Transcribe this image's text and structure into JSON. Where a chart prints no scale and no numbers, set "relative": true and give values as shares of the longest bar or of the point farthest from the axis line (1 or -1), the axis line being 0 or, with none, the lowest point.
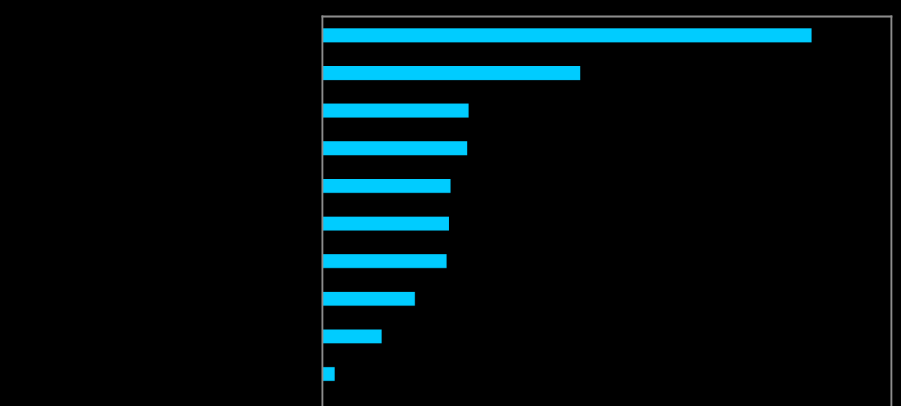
{
  "chart_data": {
    "type": "bar",
    "orientation": "horizontal",
    "relative": true,
    "categories": [
      null,
      null,
      null,
      null,
      null,
      null,
      null,
      null,
      null,
      null
    ],
    "values": [
      1,
      0.527,
      0.299,
      0.296,
      0.262,
      0.259,
      0.254,
      0.189,
      0.121,
      0.025
    ],
    "color": "#00ccff",
    "grid": false,
    "legend": false,
    "tick_labels": false
  }
}
